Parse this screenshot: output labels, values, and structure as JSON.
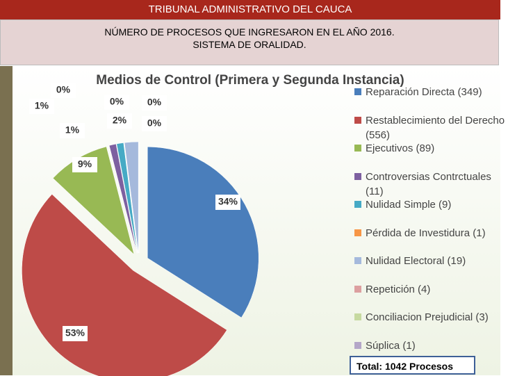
{
  "header": {
    "title": "TRIBUNAL ADMINISTRATIVO DEL CAUCA",
    "subtitle_lines": [
      "NÚMERO DE PROCESOS QUE INGRESARON EN EL AÑO 2016.",
      "SISTEMA DE ORALIDAD."
    ]
  },
  "chart_data": {
    "type": "pie",
    "title": "Medios de Control (Primera y Segunda Instancia)",
    "categories": [
      "Reparación Directa (349)",
      "Restablecimiento del Derecho (556)",
      "Ejecutivos (89)",
      "Controversias Contrctuales (11)",
      "Nulidad Simple (9)",
      "Pérdida de Investidura (1)",
      "Nulidad Electoral (19)",
      "Repetición (4)",
      "Conciliacion Prejudicial (3)",
      "Súplica (1)"
    ],
    "values": [
      34,
      53,
      9,
      1,
      1,
      0,
      2,
      0,
      0,
      0
    ],
    "value_labels": [
      "34%",
      "53%",
      "9%",
      "1%",
      "1%",
      "0%",
      "2%",
      "0%",
      "0%",
      "0%"
    ],
    "colors": [
      "#4a7ebb",
      "#be4b48",
      "#98b954",
      "#7d60a0",
      "#46aac5",
      "#f79646",
      "#a5b9dc",
      "#dc9fa0",
      "#c6d9a0",
      "#b4a6c8"
    ],
    "annotation": "Total: 1042 Procesos"
  }
}
